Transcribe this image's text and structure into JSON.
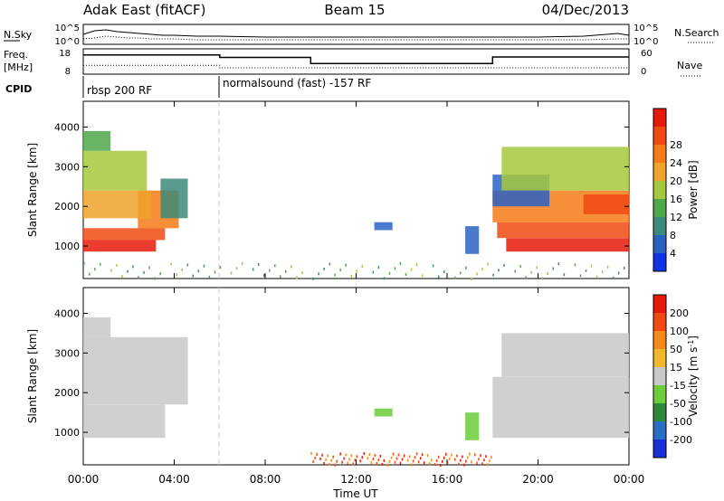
{
  "header": {
    "station": "Adak East (fitACF)",
    "beam": "Beam 15",
    "date": "04/Dec/2013"
  },
  "colors": {
    "axis": "#000000",
    "no_data_gray": "#c8c8c8"
  },
  "chart_data": [
    {
      "type": "line",
      "name": "noise-panel",
      "left_label": "N.Sky",
      "right_label": "N.Search",
      "yticks": [
        "10^5",
        "10^0"
      ],
      "x": [
        0,
        0.5,
        1,
        1.5,
        2,
        2.5,
        3,
        3.5,
        4,
        5,
        6,
        8,
        10,
        12,
        14,
        16,
        18,
        20,
        22,
        23.5,
        24
      ],
      "series": [
        {
          "name": "N.Sky",
          "style": "solid",
          "values": [
            0.55,
            0.75,
            0.8,
            0.7,
            0.65,
            0.6,
            0.55,
            0.5,
            0.5,
            0.45,
            0.45,
            0.4,
            0.4,
            0.4,
            0.4,
            0.4,
            0.4,
            0.4,
            0.45,
            0.6,
            0.5
          ]
        },
        {
          "name": "N.Search",
          "style": "dotted",
          "values": [
            0.3,
            0.35,
            0.45,
            0.4,
            0.35,
            0.35,
            0.3,
            0.3,
            0.3,
            0.25,
            0.25,
            0.25,
            0.25,
            0.25,
            0.25,
            0.25,
            0.25,
            0.25,
            0.25,
            0.3,
            0.3
          ]
        }
      ]
    },
    {
      "type": "line",
      "name": "frequency-panel",
      "left_label_top": "Freq.",
      "left_label_bottom": "[MHz]",
      "right_label": "Nave",
      "left_ticks": [
        "18",
        "8"
      ],
      "right_ticks": [
        "60",
        "0"
      ],
      "y_left_range": [
        8,
        18
      ],
      "y_right_range": [
        0,
        60
      ],
      "freq_steps": [
        {
          "from": 0,
          "to": 6,
          "value": 15.6
        },
        {
          "from": 6,
          "to": 10,
          "value": 14.6
        },
        {
          "from": 10,
          "to": 18,
          "value": 12.2
        },
        {
          "from": 18,
          "to": 24,
          "value": 14.8
        }
      ],
      "nave_steps": [
        {
          "from": 0,
          "to": 6,
          "value": 21
        },
        {
          "from": 6,
          "to": 24,
          "value": 15
        }
      ]
    },
    {
      "type": "table",
      "name": "cpid-panel",
      "label": "CPID",
      "segments": [
        {
          "from": 0,
          "to": 6,
          "text": "rbsp 200 RF"
        },
        {
          "from": 6,
          "to": 24,
          "text": "normalsound (fast) -157 RF"
        }
      ]
    },
    {
      "type": "heatmap",
      "name": "power-panel",
      "ylabel": "Slant Range [km]",
      "yticks": [
        1000,
        2000,
        3000,
        4000
      ],
      "ylim": [
        180,
        4650
      ],
      "xlim": [
        0,
        24
      ],
      "colorbar": {
        "label": "Power [dB]",
        "ticks": [
          "4",
          "8",
          "12",
          "16",
          "20",
          "24",
          "28"
        ],
        "colors": [
          "#1033e6",
          "#2a62c4",
          "#3d8a7a",
          "#4fa84a",
          "#a6c83c",
          "#f0a22a",
          "#f57a18",
          "#f04a10",
          "#e61a0a"
        ]
      },
      "regions": [
        {
          "t0": 0.0,
          "t1": 3.2,
          "r0": 860,
          "r1": 1150,
          "color_index": 8
        },
        {
          "t0": 0.0,
          "t1": 3.6,
          "r0": 1150,
          "r1": 1450,
          "color_index": 7
        },
        {
          "t0": 2.4,
          "t1": 4.2,
          "r0": 1450,
          "r1": 2400,
          "color_index": 6
        },
        {
          "t0": 3.4,
          "t1": 4.6,
          "r0": 1700,
          "r1": 2700,
          "color_index": 2
        },
        {
          "t0": 0.0,
          "t1": 3.0,
          "r0": 1700,
          "r1": 2400,
          "color_index": 5
        },
        {
          "t0": 0.0,
          "t1": 2.8,
          "r0": 2400,
          "r1": 3400,
          "color_index": 4
        },
        {
          "t0": 0.0,
          "t1": 1.2,
          "r0": 3400,
          "r1": 3900,
          "color_index": 3
        },
        {
          "t0": 12.8,
          "t1": 13.6,
          "r0": 1400,
          "r1": 1600,
          "color_index": 1
        },
        {
          "t0": 16.8,
          "t1": 17.4,
          "r0": 800,
          "r1": 1500,
          "color_index": 1
        },
        {
          "t0": 18.6,
          "t1": 24.0,
          "r0": 860,
          "r1": 1200,
          "color_index": 8
        },
        {
          "t0": 18.2,
          "t1": 24.0,
          "r0": 1200,
          "r1": 1600,
          "color_index": 7
        },
        {
          "t0": 18.0,
          "t1": 24.0,
          "r0": 1600,
          "r1": 2400,
          "color_index": 6
        },
        {
          "t0": 18.0,
          "t1": 20.5,
          "r0": 2000,
          "r1": 2800,
          "color_index": 1
        },
        {
          "t0": 18.4,
          "t1": 24.0,
          "r0": 2400,
          "r1": 3500,
          "color_index": 4
        },
        {
          "t0": 22.0,
          "t1": 24.0,
          "r0": 1800,
          "r1": 2300,
          "color_index": 7
        },
        {
          "t0": 0.0,
          "t1": 24.0,
          "r0": 200,
          "r1": 600,
          "color_index": 2,
          "density": "sparse"
        }
      ]
    },
    {
      "type": "heatmap",
      "name": "velocity-panel",
      "ylabel": "Slant Range [km]",
      "yticks": [
        1000,
        2000,
        3000,
        4000
      ],
      "ylim": [
        180,
        4650
      ],
      "xlim": [
        0,
        24
      ],
      "colorbar": {
        "label": "Velocity [m s^-1]",
        "ticks": [
          "200",
          "100",
          "50",
          "15",
          "-15",
          "-50",
          "-100",
          "-200"
        ],
        "colors": [
          "#1a2fd6",
          "#2a6ec4",
          "#2e8a3a",
          "#6ccc3a",
          "#c8c8c8",
          "#f0b82a",
          "#f58a18",
          "#f04a10",
          "#e61a0a"
        ]
      },
      "regions": [
        {
          "t0": 0.0,
          "t1": 3.6,
          "r0": 860,
          "r1": 1700,
          "color_index": 4
        },
        {
          "t0": 0.0,
          "t1": 4.6,
          "r0": 1700,
          "r1": 3400,
          "color_index": 4
        },
        {
          "t0": 0.0,
          "t1": 1.2,
          "r0": 3400,
          "r1": 3900,
          "color_index": 4
        },
        {
          "t0": 12.8,
          "t1": 13.6,
          "r0": 1400,
          "r1": 1600,
          "color_index": 3
        },
        {
          "t0": 16.8,
          "t1": 17.4,
          "r0": 800,
          "r1": 1500,
          "color_index": 3
        },
        {
          "t0": 18.0,
          "t1": 24.0,
          "r0": 860,
          "r1": 2400,
          "color_index": 4
        },
        {
          "t0": 18.4,
          "t1": 24.0,
          "r0": 2400,
          "r1": 3500,
          "color_index": 4
        },
        {
          "t0": 10.0,
          "t1": 18.0,
          "r0": 200,
          "r1": 500,
          "color_index": 6,
          "density": "sparse"
        }
      ]
    }
  ],
  "time_axis": {
    "xlabel": "Time UT",
    "ticks": [
      "00:00",
      "04:00",
      "08:00",
      "12:00",
      "16:00",
      "20:00",
      "00:00"
    ],
    "tick_hours": [
      0,
      4,
      8,
      12,
      16,
      20,
      24
    ],
    "cpid_change_hour": 6
  }
}
